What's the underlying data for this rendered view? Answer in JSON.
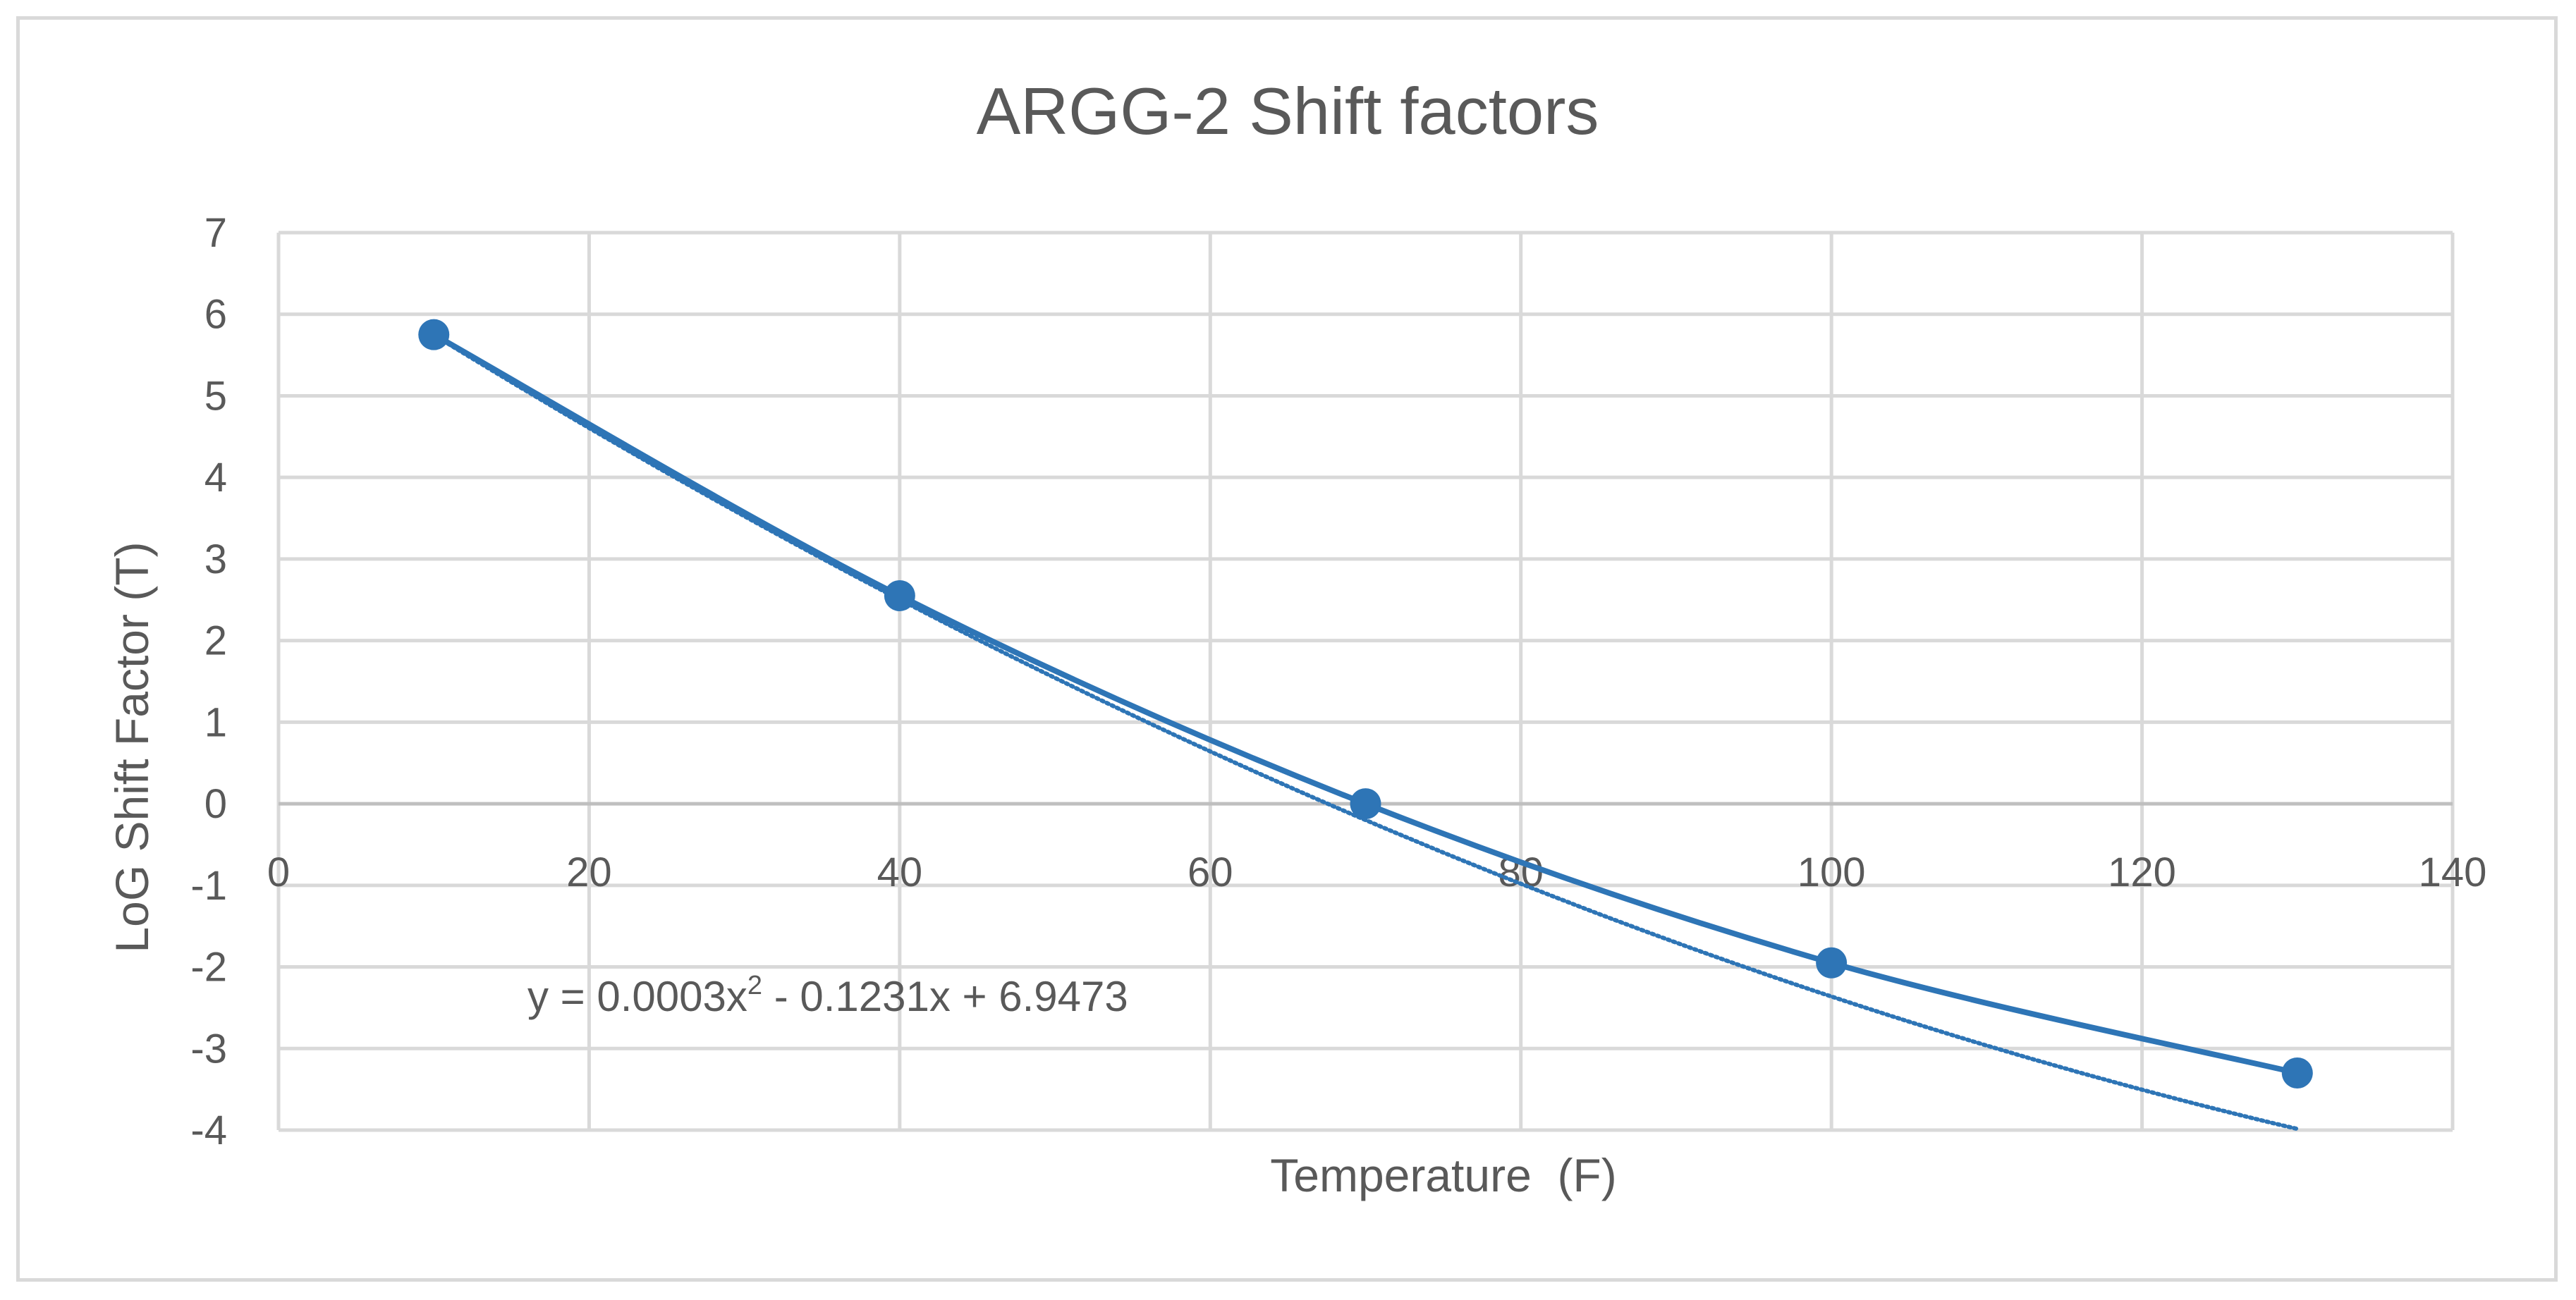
{
  "chart_data": {
    "type": "scatter",
    "title": "ARGG-2 Shift factors",
    "xlabel": "Temperature  (F)",
    "ylabel": "LoG Shift Factor (T)",
    "xlim": [
      0,
      140
    ],
    "ylim": [
      -4,
      7
    ],
    "x_ticks": [
      "0",
      "20",
      "40",
      "60",
      "80",
      "100",
      "120",
      "140"
    ],
    "y_ticks": [
      "7",
      "6",
      "5",
      "4",
      "3",
      "2",
      "1",
      "0",
      "-1",
      "-2",
      "-3",
      "-4"
    ],
    "grid": true,
    "legend": "none",
    "series": [
      {
        "x": [
          10,
          40,
          70,
          100,
          130
        ],
        "y": [
          5.75,
          2.55,
          0.0,
          -1.95,
          -3.3
        ],
        "color": "#2e75b6",
        "markers": true,
        "line": "smooth"
      }
    ],
    "trendline": {
      "type": "polynomial",
      "order": 2,
      "coefficients": [
        0.0003,
        -0.1231,
        6.9473
      ],
      "label_prefix": "y = 0.0003x",
      "label_sup": "2",
      "label_suffix": " - 0.1231x + 6.9473",
      "color": "#2e75b6"
    }
  }
}
